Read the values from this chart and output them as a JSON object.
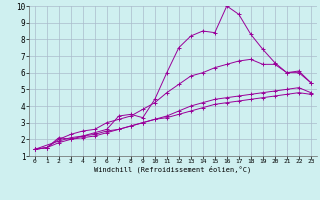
{
  "title": "",
  "xlabel": "Windchill (Refroidissement éolien,°C)",
  "background_color": "#cff0f0",
  "grid_color": "#aabbcc",
  "line_color": "#990099",
  "xlim": [
    -0.5,
    23.5
  ],
  "ylim": [
    1,
    10
  ],
  "xticks": [
    0,
    1,
    2,
    3,
    4,
    5,
    6,
    7,
    8,
    9,
    10,
    11,
    12,
    13,
    14,
    15,
    16,
    17,
    18,
    19,
    20,
    21,
    22,
    23
  ],
  "yticks": [
    1,
    2,
    3,
    4,
    5,
    6,
    7,
    8,
    9,
    10
  ],
  "curves": [
    {
      "x": [
        0,
        1,
        2,
        3,
        4,
        5,
        6,
        7,
        8,
        9,
        10,
        11,
        12,
        13,
        14,
        15,
        16,
        17,
        18,
        19,
        20,
        21,
        22,
        23
      ],
      "y": [
        1.4,
        1.5,
        2.1,
        2.0,
        2.2,
        2.4,
        2.6,
        3.4,
        3.5,
        3.3,
        4.4,
        6.0,
        7.5,
        8.2,
        8.5,
        8.4,
        10.0,
        9.5,
        8.3,
        7.4,
        6.6,
        6.0,
        6.1,
        5.4
      ]
    },
    {
      "x": [
        0,
        1,
        2,
        3,
        4,
        5,
        6,
        7,
        8,
        9,
        10,
        11,
        12,
        13,
        14,
        15,
        16,
        17,
        18,
        19,
        20,
        21,
        22,
        23
      ],
      "y": [
        1.4,
        1.5,
        2.0,
        2.3,
        2.5,
        2.6,
        3.0,
        3.2,
        3.4,
        3.8,
        4.2,
        4.8,
        5.3,
        5.8,
        6.0,
        6.3,
        6.5,
        6.7,
        6.8,
        6.5,
        6.5,
        6.0,
        6.0,
        5.4
      ]
    },
    {
      "x": [
        0,
        1,
        2,
        3,
        4,
        5,
        6,
        7,
        8,
        9,
        10,
        11,
        12,
        13,
        14,
        15,
        16,
        17,
        18,
        19,
        20,
        21,
        22,
        23
      ],
      "y": [
        1.4,
        1.5,
        1.8,
        2.0,
        2.1,
        2.2,
        2.4,
        2.6,
        2.8,
        3.0,
        3.2,
        3.4,
        3.7,
        4.0,
        4.2,
        4.4,
        4.5,
        4.6,
        4.7,
        4.8,
        4.9,
        5.0,
        5.1,
        4.8
      ]
    },
    {
      "x": [
        0,
        2,
        3,
        4,
        5,
        6,
        7,
        8,
        9,
        10,
        11,
        12,
        13,
        14,
        15,
        16,
        17,
        18,
        19,
        20,
        21,
        22,
        23
      ],
      "y": [
        1.4,
        1.9,
        2.1,
        2.2,
        2.3,
        2.5,
        2.6,
        2.8,
        3.0,
        3.2,
        3.3,
        3.5,
        3.7,
        3.9,
        4.1,
        4.2,
        4.3,
        4.4,
        4.5,
        4.6,
        4.7,
        4.8,
        4.7
      ]
    }
  ]
}
